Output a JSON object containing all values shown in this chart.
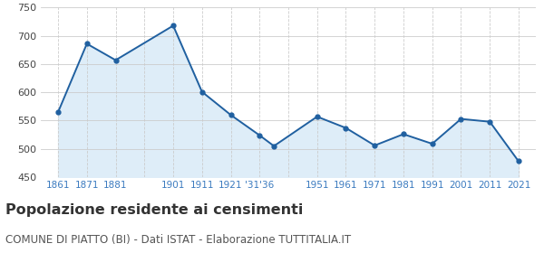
{
  "years": [
    1861,
    1871,
    1881,
    1901,
    1911,
    1921,
    1931,
    1936,
    1951,
    1961,
    1971,
    1981,
    1991,
    2001,
    2011,
    2021
  ],
  "population": [
    565,
    686,
    657,
    718,
    601,
    560,
    524,
    505,
    557,
    537,
    506,
    526,
    509,
    553,
    548,
    478
  ],
  "line_color": "#2060a0",
  "fill_color": "#deedf8",
  "marker": "o",
  "marker_size": 3.5,
  "ylim": [
    450,
    750
  ],
  "yticks": [
    450,
    500,
    550,
    600,
    650,
    700,
    750
  ],
  "title": "Popolazione residente ai censimenti",
  "subtitle": "COMUNE DI PIATTO (BI) - Dati ISTAT - Elaborazione TUTTITALIA.IT",
  "title_fontsize": 11.5,
  "subtitle_fontsize": 8.5,
  "title_color": "#333333",
  "subtitle_color": "#555555",
  "tick_label_color": "#3a7abf",
  "grid_color": "#cccccc",
  "background_color": "#ffffff",
  "x_tick_labels": [
    "1861",
    "1871",
    "1881",
    "",
    "1901",
    "1911",
    "1921",
    "'31'36",
    "",
    "1951",
    "1961",
    "1971",
    "1981",
    "1991",
    "2001",
    "2011",
    "2021"
  ]
}
